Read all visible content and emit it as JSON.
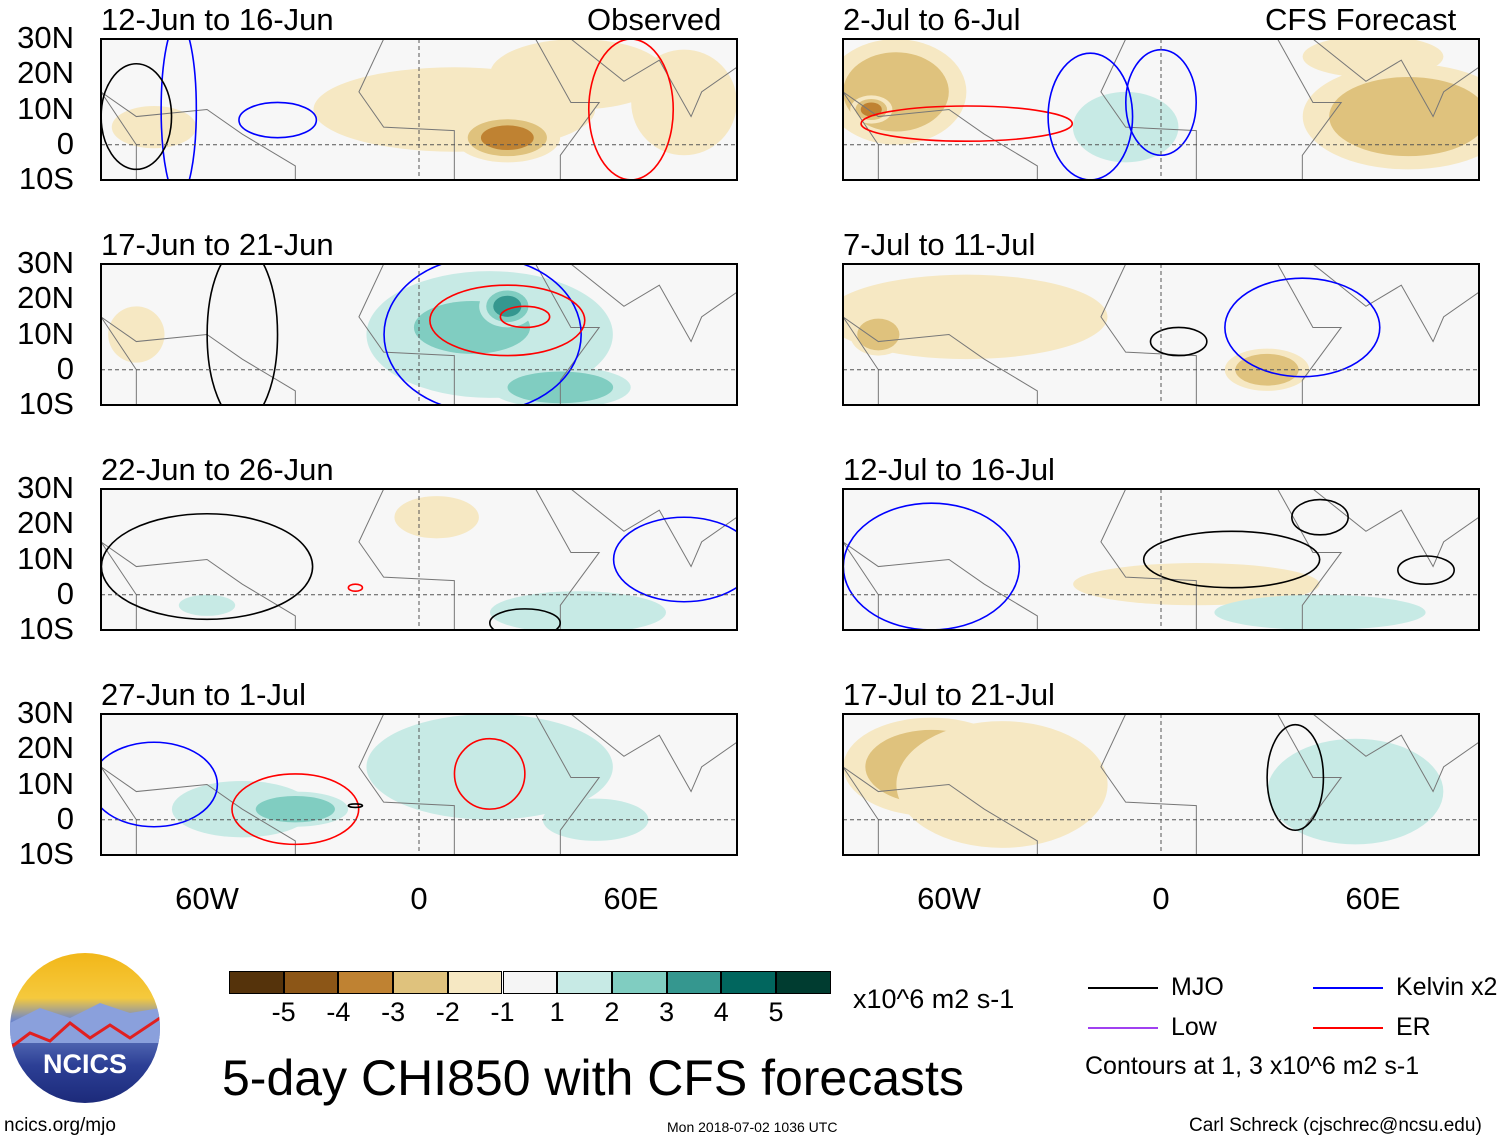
{
  "header": {
    "left_label": "Observed",
    "right_label": "CFS Forecast"
  },
  "title": "5-day CHI850 with CFS forecasts",
  "units": "x10^6 m2 s-1",
  "footer": {
    "site": "ncics.org/mjo",
    "timestamp": "Mon 2018-07-02 1036 UTC",
    "author": "Carl Schreck (cjschrec@ncsu.edu)"
  },
  "logo_text": "NCICS",
  "legend": {
    "items": [
      {
        "label": "MJO",
        "color": "#000000"
      },
      {
        "label": "Kelvin x2",
        "color": "#0000ff"
      },
      {
        "label": "Low",
        "color": "#a040f0"
      },
      {
        "label": "ER",
        "color": "#ff0000"
      }
    ],
    "note": "Contours at 1, 3 x10^6 m2 s-1"
  },
  "chart_data": {
    "type": "heatmap",
    "colorbar": {
      "ticks": [
        "-5",
        "-4",
        "-3",
        "-2",
        "-1",
        "1",
        "2",
        "3",
        "4",
        "5"
      ],
      "colors": [
        "#55330b",
        "#8c5617",
        "#bf8232",
        "#dfc27d",
        "#f6e8c3",
        "#f5f5f5",
        "#c7eae5",
        "#80cdc1",
        "#35978f",
        "#01665e",
        "#003c30"
      ]
    },
    "lat_ticks": [
      "30N",
      "20N",
      "10N",
      "0",
      "10S"
    ],
    "lon_ticks": [
      "60W",
      "0",
      "60E"
    ],
    "lon_range": [
      -90,
      90
    ],
    "lat_range": [
      -10,
      30
    ],
    "panels": [
      {
        "title": "12-Jun to 16-Jun",
        "col": 0,
        "row": 0,
        "blobs": [
          [
            -75,
            5,
            12,
            6,
            -1
          ],
          [
            10,
            10,
            40,
            12,
            -1
          ],
          [
            25,
            2,
            15,
            7,
            -3
          ],
          [
            45,
            20,
            25,
            10,
            -1
          ],
          [
            75,
            12,
            15,
            15,
            -1
          ]
        ],
        "contours": [
          [
            "kelvin",
            -40,
            7,
            11,
            5
          ],
          [
            "kelvin",
            -68,
            10,
            5,
            25
          ],
          [
            "mjo",
            -80,
            8,
            10,
            15
          ],
          [
            "er",
            60,
            10,
            12,
            20
          ]
        ]
      },
      {
        "title": "17-Jun to 21-Jun",
        "col": 0,
        "row": 1,
        "blobs": [
          [
            -80,
            10,
            8,
            8,
            -1
          ],
          [
            20,
            10,
            35,
            18,
            1
          ],
          [
            15,
            12,
            22,
            10,
            2
          ],
          [
            25,
            18,
            8,
            6,
            3
          ],
          [
            40,
            -5,
            20,
            6,
            2
          ]
        ],
        "contours": [
          [
            "kelvin",
            18,
            10,
            28,
            22
          ],
          [
            "er",
            25,
            14,
            22,
            10
          ],
          [
            "er",
            30,
            15,
            7,
            3
          ],
          [
            "mjo",
            -50,
            10,
            10,
            25
          ]
        ]
      },
      {
        "title": "22-Jun to 26-Jun",
        "col": 0,
        "row": 2,
        "blobs": [
          [
            5,
            22,
            12,
            6,
            -1
          ],
          [
            45,
            -5,
            25,
            6,
            1
          ],
          [
            -60,
            -3,
            8,
            3,
            1
          ]
        ],
        "contours": [
          [
            "mjo",
            -60,
            8,
            30,
            15
          ],
          [
            "kelvin",
            75,
            10,
            20,
            12
          ],
          [
            "er",
            -18,
            2,
            2,
            1
          ],
          [
            "mjo",
            30,
            -8,
            10,
            4
          ]
        ]
      },
      {
        "title": "27-Jun to 1-Jul",
        "col": 0,
        "row": 3,
        "blobs": [
          [
            -50,
            3,
            20,
            8,
            1
          ],
          [
            -35,
            3,
            15,
            5,
            2
          ],
          [
            20,
            15,
            35,
            15,
            1
          ],
          [
            50,
            0,
            15,
            6,
            1
          ]
        ],
        "contours": [
          [
            "kelvin",
            -75,
            10,
            18,
            12
          ],
          [
            "er",
            -35,
            3,
            18,
            10
          ],
          [
            "er",
            20,
            13,
            10,
            10
          ],
          [
            "mjo",
            -18,
            4,
            2,
            0.5
          ]
        ]
      },
      {
        "title": "2-Jul to 6-Jul",
        "col": 1,
        "row": 0,
        "blobs": [
          [
            -75,
            15,
            20,
            15,
            -2
          ],
          [
            -82,
            10,
            6,
            4,
            -3
          ],
          [
            -10,
            5,
            15,
            10,
            1
          ],
          [
            70,
            8,
            30,
            15,
            -2
          ],
          [
            60,
            25,
            20,
            6,
            -1
          ]
        ],
        "contours": [
          [
            "er",
            -55,
            6,
            30,
            5
          ],
          [
            "kelvin",
            -20,
            8,
            12,
            18
          ],
          [
            "kelvin",
            0,
            12,
            10,
            15
          ]
        ]
      },
      {
        "title": "7-Jul to 11-Jul",
        "col": 1,
        "row": 1,
        "blobs": [
          [
            -55,
            15,
            40,
            12,
            -1
          ],
          [
            -80,
            10,
            8,
            6,
            -2
          ],
          [
            30,
            0,
            12,
            6,
            -2
          ]
        ],
        "contours": [
          [
            "kelvin",
            40,
            12,
            22,
            14
          ],
          [
            "mjo",
            5,
            8,
            8,
            4
          ]
        ]
      },
      {
        "title": "12-Jul to 16-Jul",
        "col": 1,
        "row": 2,
        "blobs": [
          [
            10,
            3,
            35,
            6,
            -1
          ],
          [
            45,
            -5,
            30,
            5,
            1
          ]
        ],
        "contours": [
          [
            "kelvin",
            -65,
            8,
            25,
            18
          ],
          [
            "mjo",
            20,
            10,
            25,
            8
          ],
          [
            "mjo",
            45,
            22,
            8,
            5
          ],
          [
            "mjo",
            75,
            7,
            8,
            4
          ]
        ]
      },
      {
        "title": "17-Jul to 21-Jul",
        "col": 1,
        "row": 3,
        "blobs": [
          [
            -65,
            15,
            25,
            14,
            -2
          ],
          [
            -45,
            10,
            30,
            18,
            -1
          ],
          [
            55,
            8,
            25,
            15,
            1
          ]
        ],
        "contours": [
          [
            "mjo",
            38,
            12,
            8,
            15
          ]
        ]
      }
    ]
  }
}
